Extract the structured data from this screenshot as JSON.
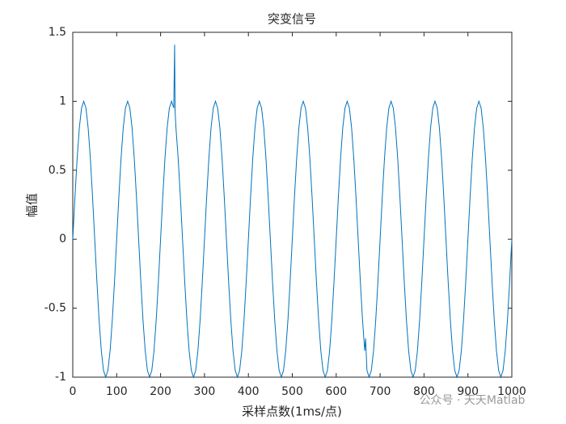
{
  "chart_data": {
    "type": "line",
    "title": "突变信号",
    "x_label": "采样点数(1ms/点)",
    "y_label": "幅值",
    "watermark": "公众号 · 天天Matlab",
    "color": "#0072BD",
    "x": [
      0,
      5,
      10,
      15,
      20,
      25,
      30,
      35,
      40,
      45,
      50,
      55,
      60,
      65,
      70,
      75,
      80,
      85,
      90,
      95,
      100,
      105,
      110,
      115,
      120,
      125,
      130,
      135,
      140,
      145,
      150,
      155,
      160,
      165,
      170,
      175,
      180,
      185,
      190,
      195,
      200,
      205,
      210,
      215,
      220,
      225,
      230,
      232,
      233,
      235,
      240,
      245,
      250,
      255,
      260,
      265,
      270,
      275,
      280,
      285,
      290,
      295,
      300,
      305,
      310,
      315,
      320,
      325,
      330,
      335,
      340,
      345,
      350,
      355,
      360,
      365,
      370,
      375,
      380,
      385,
      390,
      395,
      400,
      405,
      410,
      415,
      420,
      425,
      430,
      435,
      440,
      445,
      450,
      455,
      460,
      465,
      470,
      475,
      480,
      485,
      490,
      495,
      500,
      505,
      510,
      515,
      520,
      525,
      530,
      535,
      540,
      545,
      550,
      555,
      560,
      565,
      570,
      575,
      580,
      585,
      590,
      595,
      600,
      605,
      610,
      615,
      620,
      625,
      630,
      635,
      640,
      645,
      650,
      655,
      660,
      665,
      667,
      670,
      675,
      680,
      685,
      690,
      695,
      700,
      705,
      710,
      715,
      720,
      725,
      730,
      735,
      740,
      745,
      750,
      755,
      760,
      765,
      770,
      775,
      780,
      785,
      790,
      795,
      800,
      805,
      810,
      815,
      820,
      825,
      830,
      835,
      840,
      845,
      850,
      855,
      860,
      865,
      870,
      875,
      880,
      885,
      890,
      895,
      900,
      905,
      910,
      915,
      920,
      925,
      930,
      935,
      940,
      945,
      950,
      955,
      960,
      965,
      970,
      975,
      980,
      985,
      990,
      995,
      1000
    ],
    "values": [
      0,
      0.309,
      0.588,
      0.809,
      0.951,
      1,
      0.951,
      0.809,
      0.588,
      0.309,
      0,
      -0.309,
      -0.588,
      -0.809,
      -0.951,
      -1,
      -0.951,
      -0.809,
      -0.588,
      -0.309,
      0,
      0.309,
      0.588,
      0.809,
      0.951,
      1,
      0.951,
      0.809,
      0.588,
      0.309,
      0,
      -0.309,
      -0.588,
      -0.809,
      -0.951,
      -1,
      -0.951,
      -0.809,
      -0.588,
      -0.309,
      0,
      0.309,
      0.588,
      0.809,
      0.951,
      1,
      0.951,
      1.41,
      0.93,
      0.809,
      0.588,
      0.309,
      0,
      -0.309,
      -0.588,
      -0.809,
      -0.951,
      -1,
      -0.951,
      -0.809,
      -0.588,
      -0.309,
      0,
      0.309,
      0.588,
      0.809,
      0.951,
      1,
      0.951,
      0.809,
      0.588,
      0.309,
      0,
      -0.309,
      -0.588,
      -0.809,
      -0.951,
      -1,
      -0.951,
      -0.809,
      -0.588,
      -0.309,
      0,
      0.309,
      0.588,
      0.809,
      0.951,
      1,
      0.951,
      0.809,
      0.588,
      0.309,
      0,
      -0.309,
      -0.588,
      -0.809,
      -0.951,
      -1,
      -0.951,
      -0.809,
      -0.588,
      -0.309,
      0,
      0.309,
      0.588,
      0.809,
      0.951,
      1,
      0.951,
      0.809,
      0.588,
      0.309,
      0,
      -0.309,
      -0.588,
      -0.809,
      -0.951,
      -1,
      -0.951,
      -0.809,
      -0.588,
      -0.309,
      0,
      0.309,
      0.588,
      0.809,
      0.951,
      1,
      0.951,
      0.809,
      0.588,
      0.309,
      0,
      -0.309,
      -0.588,
      -0.809,
      -0.72,
      -0.951,
      -1,
      -0.951,
      -0.809,
      -0.588,
      -0.309,
      0,
      0.309,
      0.588,
      0.809,
      0.951,
      1,
      0.951,
      0.809,
      0.588,
      0.309,
      0,
      -0.309,
      -0.588,
      -0.809,
      -0.951,
      -1,
      -0.951,
      -0.809,
      -0.588,
      -0.309,
      0,
      0.309,
      0.588,
      0.809,
      0.951,
      1,
      0.951,
      0.809,
      0.588,
      0.309,
      0,
      -0.309,
      -0.588,
      -0.809,
      -0.951,
      -1,
      -0.951,
      -0.809,
      -0.588,
      -0.309,
      0,
      0.309,
      0.588,
      0.809,
      0.951,
      1,
      0.951,
      0.809,
      0.588,
      0.309,
      0,
      -0.309,
      -0.588,
      -0.809,
      -0.951,
      -1,
      -0.951,
      -0.809,
      -0.588,
      -0.309,
      0
    ],
    "xlim": [
      0,
      1000
    ],
    "xticks": [
      0,
      100,
      200,
      300,
      400,
      500,
      600,
      700,
      800,
      900,
      1000
    ],
    "ylim": [
      -1,
      1.5
    ],
    "yticks": [
      -1,
      -0.5,
      0,
      0.5,
      1,
      1.5
    ]
  }
}
